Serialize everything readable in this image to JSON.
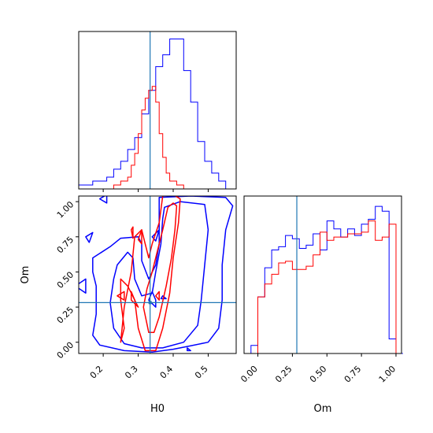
{
  "chart_data": {
    "type": "corner",
    "parameters": [
      "H0",
      "Om"
    ],
    "colors": {
      "blue": "#0000ff",
      "red": "#ff0000",
      "truth": "#1f77b4"
    },
    "truth": {
      "H0": 0.334,
      "Om": 0.282
    },
    "panels": {
      "h0_hist": {
        "xlim": [
          0.13,
          0.58
        ],
        "blue": {
          "edges": [
            0.13,
            0.15,
            0.17,
            0.19,
            0.21,
            0.23,
            0.25,
            0.27,
            0.29,
            0.31,
            0.33,
            0.35,
            0.37,
            0.39,
            0.41,
            0.43,
            0.45,
            0.47,
            0.49,
            0.51,
            0.53,
            0.55,
            0.57
          ],
          "values": [
            1,
            1,
            2,
            2,
            3,
            5,
            7,
            10,
            13,
            19,
            25,
            31,
            34,
            38,
            38,
            30,
            22,
            12,
            7,
            4,
            2,
            0
          ]
        },
        "red": {
          "edges": [
            0.23,
            0.25,
            0.27,
            0.28,
            0.29,
            0.3,
            0.31,
            0.32,
            0.33,
            0.34,
            0.35,
            0.36,
            0.37,
            0.38,
            0.39,
            0.41,
            0.43
          ],
          "values": [
            1,
            2,
            3,
            6,
            9,
            14,
            20,
            23,
            25,
            26,
            22,
            14,
            8,
            4,
            2,
            1
          ]
        }
      },
      "joint": {
        "xlim": [
          0.13,
          0.58
        ],
        "ylim": [
          -0.08,
          1.04
        ],
        "xticks": [
          0.2,
          0.3,
          0.4,
          0.5
        ],
        "xtick_labels": [
          "0.2",
          "0.3",
          "0.4",
          "0.5"
        ],
        "yticks": [
          0.0,
          0.25,
          0.5,
          0.75,
          1.0
        ],
        "ytick_labels": [
          "0.00",
          "0.25",
          "0.50",
          "0.75",
          "1.00"
        ],
        "xlabel": "H0",
        "ylabel": "Om",
        "blue_contours": [
          [
            [
              0.36,
              1.03
            ],
            [
              0.45,
              1.04
            ],
            [
              0.55,
              1.03
            ],
            [
              0.57,
              0.97
            ],
            [
              0.55,
              0.8
            ],
            [
              0.54,
              0.55
            ],
            [
              0.54,
              0.3
            ],
            [
              0.53,
              0.1
            ],
            [
              0.5,
              0.0
            ],
            [
              0.44,
              -0.03
            ],
            [
              0.4,
              -0.05
            ],
            [
              0.34,
              -0.07
            ],
            [
              0.26,
              -0.06
            ],
            [
              0.19,
              -0.02
            ],
            [
              0.17,
              0.05
            ],
            [
              0.18,
              0.2
            ],
            [
              0.18,
              0.4
            ],
            [
              0.17,
              0.5
            ],
            [
              0.17,
              0.6
            ],
            [
              0.22,
              0.68
            ],
            [
              0.25,
              0.74
            ],
            [
              0.3,
              0.75
            ],
            [
              0.31,
              0.7
            ],
            [
              0.31,
              0.58
            ],
            [
              0.33,
              0.45
            ],
            [
              0.35,
              0.55
            ],
            [
              0.36,
              0.7
            ],
            [
              0.36,
              0.85
            ],
            [
              0.36,
              1.03
            ]
          ],
          [
            [
              0.375,
              0.96
            ],
            [
              0.42,
              1.0
            ],
            [
              0.49,
              0.98
            ],
            [
              0.5,
              0.8
            ],
            [
              0.49,
              0.55
            ],
            [
              0.48,
              0.3
            ],
            [
              0.47,
              0.12
            ],
            [
              0.43,
              0.0
            ],
            [
              0.37,
              -0.04
            ],
            [
              0.31,
              -0.04
            ],
            [
              0.26,
              -0.01
            ],
            [
              0.23,
              0.1
            ],
            [
              0.22,
              0.28
            ],
            [
              0.23,
              0.45
            ],
            [
              0.24,
              0.55
            ],
            [
              0.27,
              0.64
            ],
            [
              0.285,
              0.6
            ],
            [
              0.29,
              0.45
            ],
            [
              0.31,
              0.33
            ],
            [
              0.34,
              0.35
            ],
            [
              0.35,
              0.5
            ],
            [
              0.365,
              0.7
            ],
            [
              0.37,
              0.88
            ],
            [
              0.375,
              0.96
            ]
          ],
          [
            [
              0.15,
              0.75
            ],
            [
              0.17,
              0.78
            ],
            [
              0.16,
              0.71
            ],
            [
              0.15,
              0.75
            ]
          ],
          [
            [
              0.15,
              0.45
            ],
            [
              0.12,
              0.4
            ],
            [
              0.15,
              0.35
            ],
            [
              0.15,
              0.45
            ]
          ],
          [
            [
              0.34,
              0.75
            ],
            [
              0.36,
              0.8
            ],
            [
              0.35,
              0.72
            ],
            [
              0.34,
              0.75
            ]
          ],
          [
            [
              0.19,
              1.02
            ],
            [
              0.21,
              1.05
            ],
            [
              0.21,
              0.99
            ],
            [
              0.19,
              1.02
            ]
          ],
          [
            [
              0.34,
              0.36
            ],
            [
              0.35,
              0.3
            ],
            [
              0.35,
              0.25
            ],
            [
              0.33,
              0.3
            ],
            [
              0.34,
              0.36
            ]
          ],
          [
            [
              0.44,
              -0.04
            ],
            [
              0.44,
              -0.06
            ],
            [
              0.45,
              -0.06
            ],
            [
              0.44,
              -0.04
            ]
          ],
          [
            [
              0.37,
              0.33
            ],
            [
              0.38,
              0.31
            ],
            [
              0.365,
              0.31
            ],
            [
              0.37,
              0.33
            ]
          ]
        ],
        "red_contours": [
          [
            [
              0.37,
              1.04
            ],
            [
              0.4,
              1.05
            ],
            [
              0.42,
              1.02
            ],
            [
              0.415,
              0.85
            ],
            [
              0.4,
              0.6
            ],
            [
              0.39,
              0.35
            ],
            [
              0.37,
              0.1
            ],
            [
              0.35,
              -0.06
            ],
            [
              0.32,
              -0.06
            ],
            [
              0.3,
              0.1
            ],
            [
              0.29,
              0.3
            ],
            [
              0.27,
              0.4
            ],
            [
              0.25,
              0.45
            ],
            [
              0.25,
              0.3
            ],
            [
              0.26,
              0.1
            ],
            [
              0.25,
              0.0
            ],
            [
              0.26,
              0.25
            ],
            [
              0.28,
              0.5
            ],
            [
              0.29,
              0.75
            ],
            [
              0.31,
              0.8
            ],
            [
              0.32,
              0.7
            ],
            [
              0.33,
              0.6
            ],
            [
              0.34,
              0.7
            ],
            [
              0.36,
              0.85
            ],
            [
              0.37,
              1.04
            ]
          ],
          [
            [
              0.385,
              0.96
            ],
            [
              0.4,
              0.99
            ],
            [
              0.41,
              0.97
            ],
            [
              0.405,
              0.8
            ],
            [
              0.395,
              0.6
            ],
            [
              0.38,
              0.4
            ],
            [
              0.36,
              0.18
            ],
            [
              0.345,
              0.07
            ],
            [
              0.33,
              0.07
            ],
            [
              0.315,
              0.25
            ],
            [
              0.325,
              0.38
            ],
            [
              0.34,
              0.5
            ],
            [
              0.355,
              0.65
            ],
            [
              0.37,
              0.8
            ],
            [
              0.385,
              0.96
            ]
          ],
          [
            [
              0.28,
              0.8
            ],
            [
              0.285,
              0.82
            ],
            [
              0.285,
              0.74
            ],
            [
              0.28,
              0.8
            ]
          ],
          [
            [
              0.24,
              0.33
            ],
            [
              0.26,
              0.36
            ],
            [
              0.26,
              0.3
            ],
            [
              0.24,
              0.33
            ]
          ],
          [
            [
              0.28,
              0.36
            ],
            [
              0.29,
              0.3
            ],
            [
              0.3,
              0.25
            ],
            [
              0.28,
              0.3
            ],
            [
              0.28,
              0.36
            ]
          ],
          [
            [
              0.35,
              0.33
            ],
            [
              0.36,
              0.36
            ],
            [
              0.36,
              0.3
            ],
            [
              0.35,
              0.33
            ]
          ],
          [
            [
              0.3,
              0.73
            ],
            [
              0.31,
              0.8
            ],
            [
              0.31,
              0.7
            ],
            [
              0.3,
              0.73
            ]
          ]
        ]
      },
      "om_hist": {
        "xlim": [
          -0.1,
          1.04
        ],
        "xticks": [
          0.0,
          0.25,
          0.5,
          0.75,
          1.0
        ],
        "xtick_labels": [
          "0.00",
          "0.25",
          "0.50",
          "0.75",
          "1.00"
        ],
        "xlabel": "Om",
        "blue": {
          "edges": [
            -0.05,
            0.0,
            0.05,
            0.1,
            0.15,
            0.2,
            0.25,
            0.3,
            0.35,
            0.4,
            0.45,
            0.5,
            0.55,
            0.6,
            0.65,
            0.7,
            0.75,
            0.8,
            0.85,
            0.9,
            0.95,
            1.0,
            1.05
          ],
          "values": [
            0.5,
            3.5,
            5.3,
            6.4,
            6.6,
            7.3,
            7.1,
            6.5,
            6.7,
            7.4,
            6.4,
            8.2,
            7.7,
            7.2,
            7.7,
            7.3,
            8.0,
            8.3,
            9.1,
            8.8,
            0.9,
            0.0
          ]
        },
        "red": {
          "edges": [
            0.0,
            0.05,
            0.1,
            0.15,
            0.2,
            0.25,
            0.3,
            0.35,
            0.4,
            0.45,
            0.5,
            0.55,
            0.6,
            0.65,
            0.7,
            0.75,
            0.8,
            0.85,
            0.9,
            0.95,
            1.0
          ],
          "values": [
            3.5,
            4.3,
            4.9,
            5.6,
            5.7,
            5.2,
            5.2,
            5.4,
            6.1,
            7.5,
            7.0,
            7.2,
            7.2,
            7.4,
            7.4,
            7.5,
            8.2,
            7.0,
            7.2,
            8.0
          ]
        }
      }
    }
  }
}
